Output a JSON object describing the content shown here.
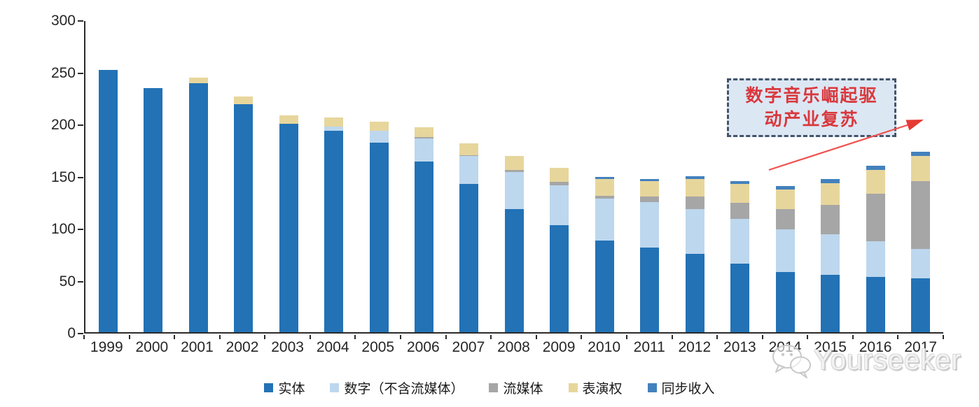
{
  "chart_data": {
    "type": "bar",
    "stacked": true,
    "title": "",
    "xlabel": "",
    "ylabel": "",
    "categories": [
      "1999",
      "2000",
      "2001",
      "2002",
      "2003",
      "2004",
      "2005",
      "2006",
      "2007",
      "2008",
      "2009",
      "2010",
      "2011",
      "2012",
      "2013",
      "2014",
      "2015",
      "2016",
      "2017"
    ],
    "series": [
      {
        "name": "实体",
        "color": "#2272b5",
        "values": [
          252,
          234,
          239,
          219,
          200,
          193,
          182,
          164,
          142,
          118,
          103,
          88,
          81,
          75,
          66,
          58,
          55,
          53,
          52
        ]
      },
      {
        "name": "数字（不含流媒体）",
        "color": "#bdd7ee",
        "values": [
          0,
          0,
          0,
          0,
          0,
          4,
          11,
          22,
          27,
          36,
          38,
          40,
          44,
          43,
          43,
          41,
          39,
          34,
          28
        ]
      },
      {
        "name": "流媒体",
        "color": "#a6a6a6",
        "values": [
          0,
          0,
          0,
          0,
          0,
          0,
          0,
          1,
          1,
          2,
          3,
          3,
          5,
          12,
          15,
          19,
          28,
          46,
          65
        ]
      },
      {
        "name": "表演权",
        "color": "#e7d69c",
        "values": [
          0,
          0,
          5,
          7,
          8,
          9,
          9,
          10,
          11,
          13,
          14,
          16,
          15,
          17,
          18,
          19,
          21,
          23,
          24
        ]
      },
      {
        "name": "同步收入",
        "color": "#4381bd",
        "values": [
          0,
          0,
          0,
          0,
          0,
          0,
          0,
          0,
          0,
          0,
          0,
          2,
          2,
          3,
          3,
          3,
          4,
          4,
          4
        ]
      }
    ],
    "ylim": [
      0,
      300
    ],
    "ytick_step": 50,
    "ytick_labels": [
      "0",
      "50",
      "100",
      "150",
      "200",
      "250",
      "300"
    ],
    "legend_position": "bottom",
    "grid": false,
    "axis_color": "#2b2b2b"
  },
  "annotation": {
    "text": "数字音乐崛起驱动产业复苏",
    "lines": [
      "数字音乐崛起驱",
      "动产业复苏"
    ],
    "box_fill": "#dce7f4",
    "border_color": "#44546a",
    "text_color": "#d9383d",
    "arrow_color": "#e8474b"
  },
  "watermark": {
    "text": "Yourseeker"
  }
}
